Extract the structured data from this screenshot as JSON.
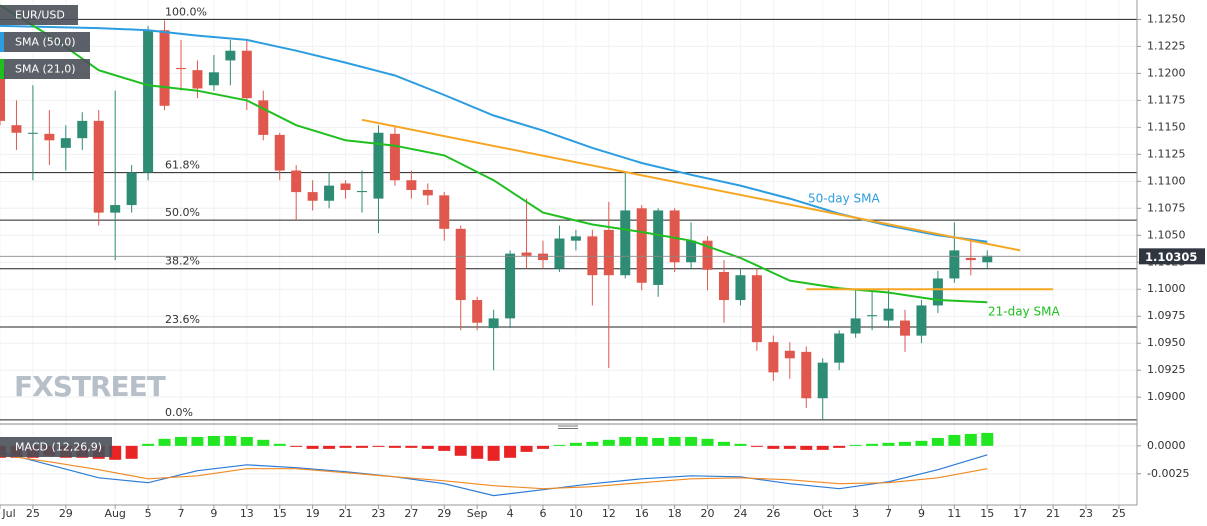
{
  "chart_data": [
    {
      "type": "candlestick",
      "title": "EUR/USD",
      "open": [
        1.1203,
        1.1152,
        1.1144,
        1.1144,
        1.1131,
        1.114,
        1.1156,
        1.1071,
        1.1078,
        1.1108,
        1.124,
        1.1205,
        1.1203,
        1.1189,
        1.1212,
        1.1221,
        1.1175,
        1.1143,
        1.111,
        1.109,
        1.1082,
        1.1098,
        1.109,
        1.1084,
        1.1144,
        1.1101,
        1.1092,
        1.1087,
        1.1056,
        1.099,
        1.0964,
        1.0973,
        1.1034,
        1.1033,
        1.1019,
        1.1045,
        1.1049,
        1.1055,
        1.1013,
        1.1075,
        1.1004,
        1.1073,
        1.1025,
        1.1045,
        1.1016,
        1.099,
        1.1013,
        1.0951,
        1.0943,
        1.0942,
        1.0899,
        1.0932,
        1.0959,
        1.0975,
        1.0971,
        1.0971,
        1.0957,
        1.0985,
        1.101,
        1.1029,
        1.1025
      ],
      "high": [
        1.1212,
        1.1175,
        1.1189,
        1.1166,
        1.1152,
        1.1164,
        1.1166,
        1.1184,
        1.1115,
        1.1244,
        1.1249,
        1.1231,
        1.1212,
        1.1217,
        1.1231,
        1.1231,
        1.1184,
        1.1145,
        1.1115,
        1.1101,
        1.1108,
        1.1101,
        1.111,
        1.1152,
        1.1152,
        1.111,
        1.1098,
        1.109,
        1.1059,
        1.0993,
        1.0981,
        1.1036,
        1.1084,
        1.1045,
        1.1059,
        1.1055,
        1.1055,
        1.1081,
        1.1108,
        1.1078,
        1.1075,
        1.1075,
        1.1062,
        1.1049,
        1.1027,
        1.1019,
        1.1019,
        1.0957,
        1.0951,
        1.0947,
        1.0936,
        1.0962,
        1.1,
        1.0999,
        1.1001,
        1.0981,
        1.099,
        1.1017,
        1.1062,
        1.1045,
        1.1036
      ],
      "low": [
        1.1152,
        1.1129,
        1.1101,
        1.1115,
        1.111,
        1.1129,
        1.1059,
        1.1027,
        1.1071,
        1.1101,
        1.1166,
        1.1184,
        1.1177,
        1.1184,
        1.1189,
        1.1166,
        1.1138,
        1.1101,
        1.1064,
        1.1073,
        1.1075,
        1.1084,
        1.1071,
        1.1052,
        1.1096,
        1.1084,
        1.1078,
        1.1045,
        1.0962,
        1.0962,
        1.0925,
        1.0964,
        1.1019,
        1.1019,
        1.1016,
        1.1036,
        1.0985,
        1.0927,
        1.101,
        1.0999,
        1.0993,
        1.1016,
        1.1019,
        1.0999,
        1.0969,
        1.0985,
        1.0943,
        1.0915,
        1.0917,
        1.089,
        1.0879,
        1.0925,
        1.0955,
        1.0962,
        1.0964,
        1.0942,
        1.095,
        1.0978,
        1.1006,
        1.1013,
        1.1019
      ],
      "close": [
        1.1156,
        1.1145,
        1.1145,
        1.1138,
        1.114,
        1.1156,
        1.1071,
        1.1078,
        1.1108,
        1.124,
        1.117,
        1.1204,
        1.1186,
        1.1201,
        1.1221,
        1.1177,
        1.1143,
        1.111,
        1.109,
        1.1082,
        1.1096,
        1.1092,
        1.1091,
        1.1145,
        1.1101,
        1.1092,
        1.1087,
        1.1056,
        1.099,
        1.0969,
        1.0973,
        1.1033,
        1.1031,
        1.1027,
        1.1047,
        1.1049,
        1.1013,
        1.1013,
        1.1073,
        1.1006,
        1.1073,
        1.1025,
        1.1045,
        1.1018,
        1.099,
        1.1013,
        1.0951,
        1.0923,
        1.0936,
        1.0899,
        1.0932,
        1.0959,
        1.0973,
        1.0976,
        1.0982,
        1.0957,
        1.0985,
        1.101,
        1.1036,
        1.1027,
        1.1031
      ],
      "up_color": "#2e8b74",
      "down_color": "#e0574d",
      "series": [
        {
          "name": "SMA (50,0)",
          "color": "#2b9de0",
          "x": [
            0,
            6,
            9,
            12,
            15,
            18,
            21,
            24,
            27,
            30,
            33,
            36,
            39,
            42,
            45,
            48,
            51,
            54,
            57,
            60
          ],
          "values": [
            1.1244,
            1.1242,
            1.124,
            1.1235,
            1.1231,
            1.1221,
            1.121,
            1.1198,
            1.118,
            1.1161,
            1.1147,
            1.1131,
            1.1117,
            1.1106,
            1.1096,
            1.1084,
            1.107,
            1.1059,
            1.105,
            1.1044
          ]
        },
        {
          "name": "SMA (21,0)",
          "color": "#1fbf1f",
          "x": [
            0,
            3,
            6,
            9,
            12,
            15,
            18,
            21,
            24,
            27,
            30,
            33,
            36,
            39,
            42,
            45,
            48,
            51,
            54,
            57,
            60
          ],
          "values": [
            1.1263,
            1.1235,
            1.1203,
            1.1189,
            1.1184,
            1.1175,
            1.1152,
            1.1138,
            1.1133,
            1.1124,
            1.1101,
            1.1071,
            1.106,
            1.1053,
            1.1045,
            1.1029,
            1.1008,
            1.1001,
            1.0997,
            1.099,
            1.0988
          ]
        }
      ],
      "levels": [
        {
          "label": "100.0%",
          "value": 1.125
        },
        {
          "label": "61.8%",
          "value": 1.1108
        },
        {
          "label": "50.0%",
          "value": 1.1064
        },
        {
          "label": "38.2%",
          "value": 1.1019
        },
        {
          "label": "23.6%",
          "value": 1.0965
        },
        {
          "label": "0.0%",
          "value": 1.0879
        }
      ],
      "trendlines": [
        {
          "color": "#f5a623",
          "x": [
            22,
            62
          ],
          "values": [
            1.1157,
            1.1036
          ]
        },
        {
          "color": "#f5a623",
          "x": [
            49,
            64
          ],
          "values": [
            1.1,
            1.1
          ]
        }
      ],
      "annotations": [
        {
          "text": "50-day SMA",
          "color": "#2b9de0"
        },
        {
          "text": "21-day SMA",
          "color": "#1fbf1f"
        }
      ],
      "last_price": 1.10305,
      "watermark": "FXSTREET",
      "xlim": [
        0,
        69.1
      ],
      "ylim": [
        1.0877,
        1.1268
      ],
      "yticks": [
        {
          "value": 1.125,
          "label": "1.1250"
        },
        1.1225,
        {
          "value": 1.12,
          "label": "1.1200"
        },
        1.1175,
        {
          "value": 1.115,
          "label": "1.1150"
        },
        1.1125,
        {
          "value": 1.11,
          "label": "1.1100"
        },
        1.1075,
        {
          "value": 1.105,
          "label": "1.1050"
        },
        1.1025,
        {
          "value": 1.1,
          "label": "1.1000"
        },
        1.0975,
        {
          "value": 1.095,
          "label": "1.0950"
        },
        1.0925,
        {
          "value": 1.09,
          "label": "1.0900"
        }
      ],
      "xticks": [
        {
          "value": 0,
          "label": "Jul"
        },
        {
          "value": 2,
          "label": "25"
        },
        {
          "value": 4,
          "label": "29"
        },
        {
          "value": 7,
          "label": "Aug"
        },
        {
          "value": 9,
          "label": "5"
        },
        {
          "value": 11,
          "label": "7"
        },
        {
          "value": 13,
          "label": "9"
        },
        {
          "value": 15,
          "label": "13"
        },
        {
          "value": 17,
          "label": "15"
        },
        {
          "value": 19,
          "label": "19"
        },
        {
          "value": 21,
          "label": "21"
        },
        {
          "value": 23,
          "label": "23"
        },
        {
          "value": 25,
          "label": "27"
        },
        {
          "value": 27,
          "label": "29"
        },
        {
          "value": 29,
          "label": "Sep"
        },
        {
          "value": 31,
          "label": "4"
        },
        {
          "value": 33,
          "label": "6"
        },
        {
          "value": 35,
          "label": "10"
        },
        {
          "value": 37,
          "label": "12"
        },
        {
          "value": 39,
          "label": "16"
        },
        {
          "value": 41,
          "label": "18"
        },
        {
          "value": 43,
          "label": "20"
        },
        {
          "value": 45,
          "label": "24"
        },
        {
          "value": 47,
          "label": "26"
        },
        {
          "value": 50,
          "label": "Oct"
        },
        {
          "value": 52,
          "label": "3"
        },
        {
          "value": 54,
          "label": "7"
        },
        {
          "value": 56,
          "label": "9"
        },
        {
          "value": 58,
          "label": "11"
        },
        {
          "value": 60,
          "label": "15"
        },
        {
          "value": 62,
          "label": "17"
        },
        {
          "value": 64,
          "label": "21"
        },
        {
          "value": 66,
          "label": "23"
        },
        {
          "value": 68,
          "label": "25"
        }
      ],
      "grid": true
    },
    {
      "type": "macd",
      "title": "MACD (12,26,9)",
      "values": [
        -0.00107,
        -0.00107,
        -0.00107,
        -0.00089,
        -0.00107,
        -0.00107,
        -0.00116,
        -0.00125,
        -0.00116,
        0.00018,
        0.00063,
        0.0008,
        0.0008,
        0.00089,
        0.00089,
        0.0008,
        0.00054,
        0.00018,
        -9e-05,
        -0.00027,
        -0.00027,
        -0.00018,
        -0.00018,
        -9e-05,
        -0.00018,
        -0.00018,
        -0.00027,
        -0.00045,
        -0.00089,
        -0.00116,
        -0.00134,
        -0.00107,
        -0.00054,
        -0.00027,
        9e-05,
        0.00027,
        0.00036,
        0.00054,
        0.0008,
        0.0008,
        0.00071,
        0.0008,
        0.0008,
        0.00063,
        0.00036,
        0.00018,
        -9e-05,
        -0.00027,
        -0.00027,
        -0.00036,
        -0.00036,
        -0.00018,
        9e-05,
        0.00018,
        0.00027,
        0.00036,
        0.00045,
        0.00071,
        0.00098,
        0.00107,
        0.00116
      ],
      "up_color": "#22e622",
      "down_color": "#e82424",
      "series": [
        {
          "color": "#2b7bd6",
          "x": [
            0,
            3,
            6,
            9,
            12,
            15,
            18,
            21,
            24,
            27,
            30,
            33,
            36,
            39,
            42,
            45,
            48,
            51,
            54,
            57,
            60
          ],
          "values": [
            -0.00054,
            -0.0017,
            -0.00286,
            -0.0033,
            -0.00223,
            -0.0017,
            -0.00196,
            -0.00232,
            -0.00277,
            -0.00339,
            -0.00446,
            -0.00393,
            -0.00339,
            -0.00295,
            -0.00268,
            -0.00277,
            -0.00339,
            -0.00384,
            -0.00321,
            -0.00214,
            -0.0008
          ]
        },
        {
          "color": "#f08a24",
          "x": [
            0,
            3,
            6,
            9,
            12,
            15,
            18,
            21,
            24,
            27,
            30,
            33,
            36,
            39,
            42,
            45,
            48,
            51,
            54,
            57,
            60
          ],
          "values": [
            -0.0008,
            -0.00143,
            -0.00214,
            -0.00295,
            -0.00268,
            -0.00205,
            -0.00205,
            -0.00241,
            -0.00277,
            -0.00313,
            -0.00357,
            -0.00384,
            -0.00366,
            -0.0033,
            -0.00295,
            -0.00286,
            -0.00304,
            -0.00339,
            -0.0033,
            -0.00286,
            -0.00205
          ]
        }
      ],
      "ylim": [
        -0.0053,
        0.0016
      ],
      "yticks": [
        {
          "value": 0,
          "label": "0.0000"
        },
        -0.0025
      ]
    }
  ]
}
